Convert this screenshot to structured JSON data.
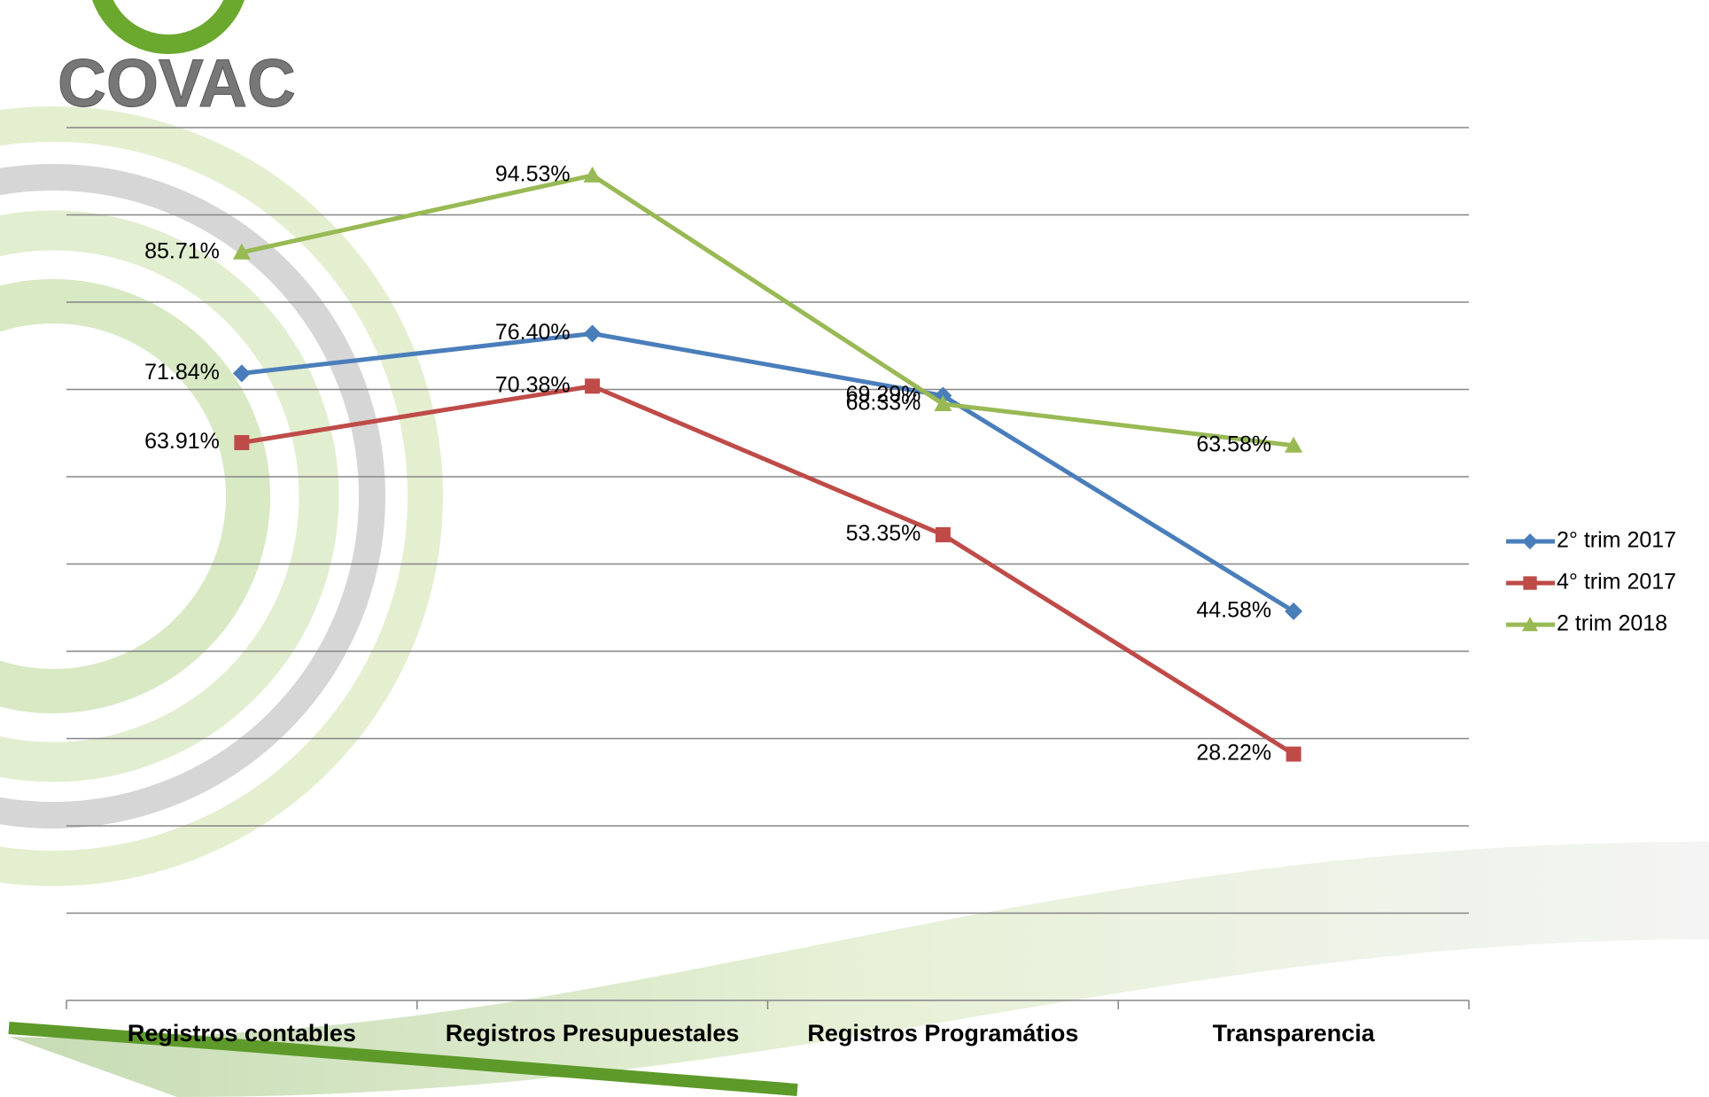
{
  "logo_text": "COVAC",
  "chart_data": {
    "type": "line",
    "categories": [
      "Registros contables",
      "Registros Presupuestales",
      "Registros Programátios",
      "Transparencia"
    ],
    "series": [
      {
        "name": "2° trim 2017",
        "color": "#4a7ebb",
        "marker": "diamond",
        "values": [
          71.84,
          76.4,
          69.29,
          44.58
        ],
        "value_labels": [
          "71.84%",
          "76.40%",
          "69.29%",
          "44.58%"
        ]
      },
      {
        "name": "4° trim 2017",
        "color": "#be4b48",
        "marker": "square",
        "values": [
          63.91,
          70.38,
          53.35,
          28.22
        ],
        "value_labels": [
          "63.91%",
          "70.38%",
          "53.35%",
          "28.22%"
        ]
      },
      {
        "name": "2 trim 2018",
        "color": "#98b954",
        "marker": "triangle",
        "values": [
          85.71,
          94.53,
          68.33,
          63.58
        ],
        "value_labels": [
          "85.71%",
          "94.53%",
          "68.33%",
          "63.58%"
        ]
      }
    ],
    "ylim": [
      0,
      100
    ],
    "yticks": [
      0,
      10,
      20,
      30,
      40,
      50,
      60,
      70,
      80,
      90,
      100
    ],
    "grid": true,
    "legend": "right"
  }
}
